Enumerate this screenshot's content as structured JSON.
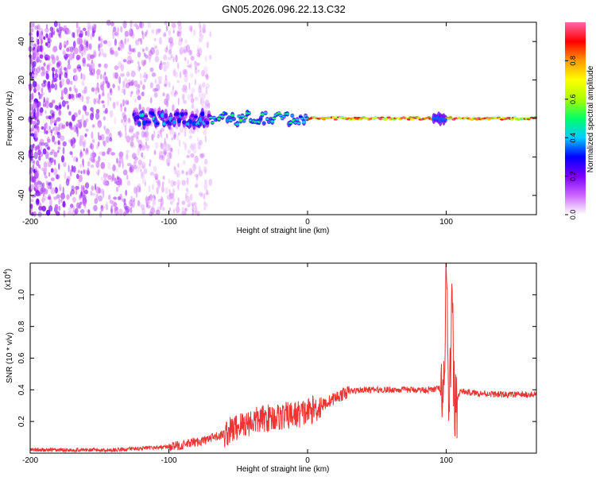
{
  "title": "GN05.2026.096.22.13.C32",
  "chart_data": [
    {
      "type": "heatmap",
      "xlabel": "Height of straight line (km)",
      "ylabel": "Frequency (Hz)",
      "xlim": [
        -200,
        165
      ],
      "ylim": [
        -50,
        50
      ],
      "xticks": [
        -200,
        -100,
        0,
        100
      ],
      "yticks": [
        -40,
        -20,
        0,
        20,
        40
      ],
      "colorbar": {
        "label": "Normalized spectral amplitude",
        "range": [
          0,
          1
        ],
        "ticks": [
          0.0,
          0.2,
          0.4,
          0.6,
          0.8
        ],
        "tick_labels": [
          "0.0",
          "0.2",
          "0.4",
          "0.6",
          "0.8"
        ],
        "colormap": [
          "#ffffff",
          "#cc66ff",
          "#7a00ff",
          "#0000ff",
          "#00ccff",
          "#00ff66",
          "#aaff00",
          "#ffff00",
          "#ff9900",
          "#ff0000",
          "#ff66aa"
        ]
      },
      "description_points": {
        "noise_region_x": [
          -200,
          -70
        ],
        "carrier_frequency": 0,
        "strong_carrier_x": [
          0,
          165
        ],
        "disturbance_x": 95
      }
    },
    {
      "type": "line",
      "xlabel": "Height of straight line (km)",
      "ylabel": "SNR (10 * v/v)",
      "y_multiplier_label": "(x10",
      "y_multiplier_exponent": "4",
      "y_multiplier_close": ")",
      "xlim": [
        -200,
        165
      ],
      "ylim": [
        0,
        1.2
      ],
      "xticks": [
        -200,
        -100,
        0,
        100
      ],
      "yticks": [
        0.2,
        0.4,
        0.6,
        0.8,
        1.0
      ],
      "ytick_labels": [
        "0.2",
        "0.4",
        "0.6",
        "0.8",
        "1.0"
      ],
      "color": "#ee3333",
      "series": [
        {
          "x": [
            -200,
            -180,
            -160,
            -140,
            -120,
            -100,
            -90,
            -80,
            -70,
            -60,
            -50,
            -40,
            -30,
            -20,
            -10,
            0,
            10,
            20,
            30,
            40,
            60,
            80,
            90,
            95,
            98,
            100,
            102,
            104,
            106,
            110,
            120,
            140,
            165
          ],
          "values": [
            0.02,
            0.02,
            0.02,
            0.02,
            0.03,
            0.04,
            0.05,
            0.07,
            0.09,
            0.12,
            0.17,
            0.2,
            0.22,
            0.23,
            0.24,
            0.26,
            0.3,
            0.35,
            0.39,
            0.4,
            0.4,
            0.4,
            0.4,
            0.41,
            0.25,
            1.2,
            0.1,
            0.95,
            0.3,
            0.39,
            0.38,
            0.37,
            0.37
          ]
        }
      ]
    }
  ]
}
